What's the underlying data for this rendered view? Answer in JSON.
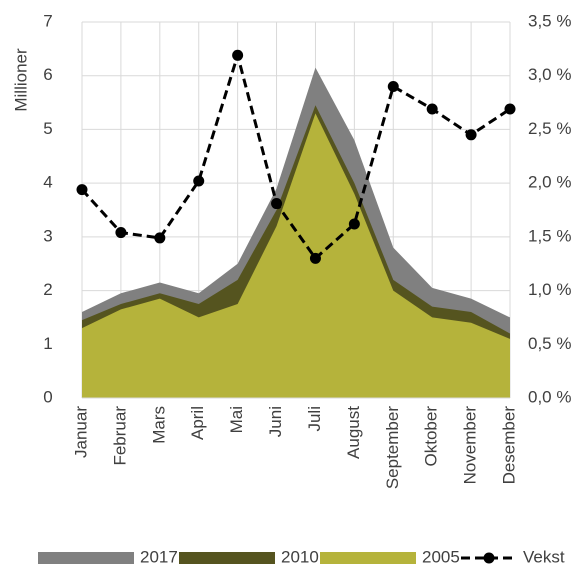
{
  "chart_data": {
    "type": "area",
    "y_label": "Millioner",
    "categories": [
      "Januar",
      "Februar",
      "Mars",
      "April",
      "Mai",
      "Juni",
      "Juli",
      "August",
      "September",
      "Oktober",
      "November",
      "Desember"
    ],
    "series": [
      {
        "name": "2017",
        "color": "#808080",
        "values": [
          1.6,
          1.95,
          2.15,
          1.95,
          2.5,
          3.9,
          6.15,
          4.8,
          2.8,
          2.05,
          1.85,
          1.5
        ]
      },
      {
        "name": "2010",
        "color": "#55541f",
        "values": [
          1.45,
          1.75,
          1.95,
          1.75,
          2.2,
          3.5,
          5.45,
          4.0,
          2.2,
          1.7,
          1.6,
          1.2
        ]
      },
      {
        "name": "2005",
        "color": "#b5b33b",
        "values": [
          1.3,
          1.65,
          1.85,
          1.5,
          1.75,
          3.2,
          5.3,
          3.8,
          2.0,
          1.5,
          1.4,
          1.1
        ]
      },
      {
        "name": "Vekst",
        "color": "#000000",
        "type": "line",
        "axis": "y2",
        "values": [
          1.94,
          1.54,
          1.49,
          2.02,
          3.19,
          1.81,
          1.3,
          1.62,
          2.9,
          2.69,
          2.45,
          2.69
        ]
      }
    ],
    "ylim": [
      0,
      7
    ],
    "yticks": [
      0,
      1,
      2,
      3,
      4,
      5,
      6,
      7
    ],
    "y2lim": [
      0,
      3.5
    ],
    "y2ticks": [
      {
        "value": 0,
        "label": "0,0 %"
      },
      {
        "value": 0.5,
        "label": "0,5 %"
      },
      {
        "value": 1,
        "label": "1,0 %"
      },
      {
        "value": 1.5,
        "label": "1,5 %"
      },
      {
        "value": 2,
        "label": "2,0 %"
      },
      {
        "value": 2.5,
        "label": "2,5 %"
      },
      {
        "value": 3,
        "label": "3,0 %"
      },
      {
        "value": 3.5,
        "label": "3,5 %"
      }
    ],
    "grid": true,
    "legend": "bottom"
  }
}
